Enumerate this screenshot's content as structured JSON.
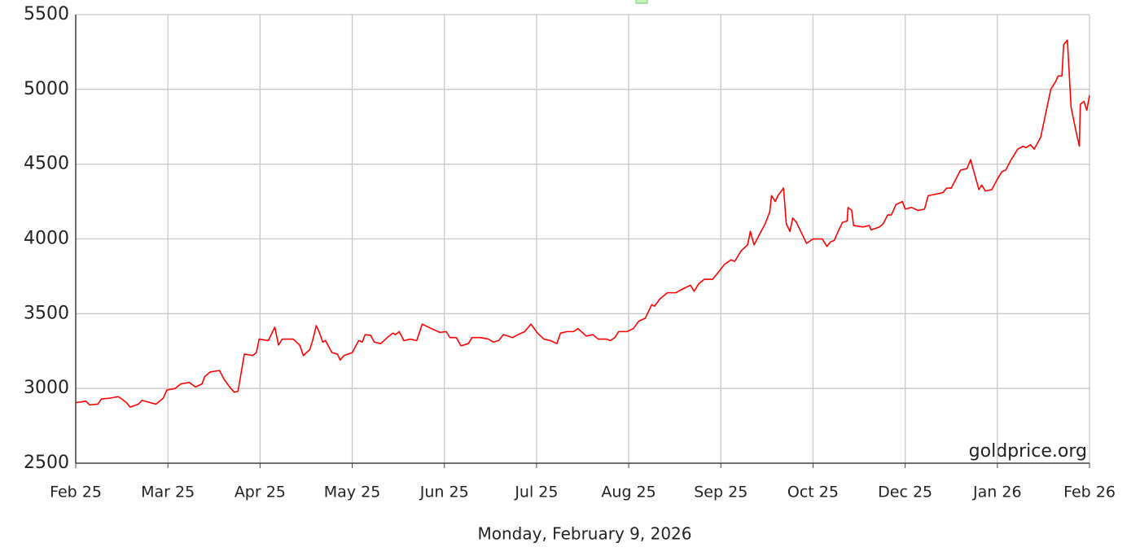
{
  "chart_data": {
    "type": "line",
    "footer": "Monday, February 9, 2026",
    "source": "goldprice.org",
    "xlim": [
      0,
      11
    ],
    "xticks": [
      {
        "value": 0,
        "label": "Feb 25"
      },
      {
        "value": 1,
        "label": "Mar 25"
      },
      {
        "value": 2,
        "label": "Apr 25"
      },
      {
        "value": 3,
        "label": "May 25"
      },
      {
        "value": 4,
        "label": "Jun 25"
      },
      {
        "value": 5,
        "label": "Jul 25"
      },
      {
        "value": 6,
        "label": "Aug 25"
      },
      {
        "value": 7,
        "label": "Sep 25"
      },
      {
        "value": 8,
        "label": "Oct 25"
      },
      {
        "value": 9,
        "label": "Dec 25"
      },
      {
        "value": 10,
        "label": "Jan 26"
      },
      {
        "value": 11,
        "label": "Feb 26"
      }
    ],
    "ylim": [
      2500,
      5500
    ],
    "yticks": [
      2500,
      3000,
      3500,
      4000,
      4500,
      5000,
      5500
    ],
    "grid": true,
    "series": [
      {
        "color": "#ff0000",
        "x": [
          0,
          0.06,
          0.11,
          0.15,
          0.24,
          0.28,
          0.37,
          0.46,
          0.5,
          0.55,
          0.59,
          0.68,
          0.72,
          0.81,
          0.87,
          0.95,
          0.99,
          1.08,
          1.14,
          1.23,
          1.3,
          1.37,
          1.4,
          1.46,
          1.56,
          1.61,
          1.67,
          1.72,
          1.76,
          1.83,
          1.92,
          1.96,
          1.99,
          2.09,
          2.16,
          2.2,
          2.24,
          2.36,
          2.43,
          2.47,
          2.54,
          2.57,
          2.61,
          2.64,
          2.68,
          2.71,
          2.78,
          2.84,
          2.87,
          2.91,
          3.0,
          3.07,
          3.11,
          3.14,
          3.2,
          3.24,
          3.31,
          3.38,
          3.44,
          3.47,
          3.51,
          3.56,
          3.63,
          3.7,
          3.76,
          3.86,
          3.95,
          4.02,
          4.06,
          4.13,
          4.18,
          4.26,
          4.3,
          4.39,
          4.48,
          4.53,
          4.59,
          4.64,
          4.69,
          4.74,
          4.8,
          4.87,
          4.94,
          5.01,
          5.08,
          5.15,
          5.22,
          5.26,
          5.33,
          5.4,
          5.45,
          5.54,
          5.61,
          5.67,
          5.76,
          5.8,
          5.85,
          5.89,
          5.98,
          6.05,
          6.11,
          6.18,
          6.25,
          6.28,
          6.34,
          6.42,
          6.51,
          6.6,
          6.67,
          6.71,
          6.76,
          6.82,
          6.91,
          6.95,
          7.04,
          7.11,
          7.15,
          7.22,
          7.29,
          7.32,
          7.36,
          7.41,
          7.48,
          7.53,
          7.55,
          7.59,
          7.62,
          7.68,
          7.71,
          7.75,
          7.78,
          7.82,
          7.93,
          8.0,
          8.1,
          8.15,
          8.19,
          8.23,
          8.28,
          8.32,
          8.37,
          8.38,
          8.42,
          8.44,
          8.54,
          8.61,
          8.63,
          8.72,
          8.76,
          8.81,
          8.85,
          8.9,
          8.97,
          9.0,
          9.07,
          9.14,
          9.21,
          9.25,
          9.34,
          9.41,
          9.45,
          9.5,
          9.6,
          9.67,
          9.71,
          9.75,
          9.8,
          9.83,
          9.87,
          9.94,
          10.0,
          10.05,
          10.09,
          10.15,
          10.22,
          10.28,
          10.31,
          10.36,
          10.4,
          10.47,
          10.58,
          10.63,
          10.66,
          10.7,
          10.72,
          10.76,
          10.8,
          10.86,
          10.89,
          10.9,
          10.94,
          10.97,
          11
        ],
        "values": [
          2905,
          2910,
          2915,
          2890,
          2895,
          2930,
          2935,
          2945,
          2930,
          2905,
          2875,
          2895,
          2920,
          2905,
          2895,
          2935,
          2990,
          3000,
          3030,
          3040,
          3010,
          3030,
          3080,
          3110,
          3120,
          3060,
          3010,
          2975,
          2980,
          3230,
          3220,
          3240,
          3330,
          3320,
          3410,
          3290,
          3330,
          3330,
          3290,
          3220,
          3260,
          3320,
          3420,
          3380,
          3310,
          3320,
          3240,
          3230,
          3190,
          3220,
          3240,
          3320,
          3310,
          3360,
          3355,
          3310,
          3300,
          3340,
          3370,
          3360,
          3380,
          3320,
          3330,
          3320,
          3430,
          3400,
          3375,
          3380,
          3340,
          3340,
          3285,
          3300,
          3340,
          3340,
          3330,
          3310,
          3320,
          3360,
          3350,
          3340,
          3360,
          3380,
          3430,
          3370,
          3330,
          3320,
          3300,
          3370,
          3380,
          3380,
          3400,
          3350,
          3360,
          3330,
          3330,
          3320,
          3340,
          3380,
          3380,
          3400,
          3450,
          3470,
          3560,
          3550,
          3600,
          3640,
          3640,
          3670,
          3690,
          3650,
          3700,
          3730,
          3730,
          3760,
          3830,
          3860,
          3850,
          3920,
          3960,
          4050,
          3960,
          4020,
          4100,
          4180,
          4290,
          4250,
          4290,
          4340,
          4100,
          4050,
          4140,
          4110,
          3970,
          4000,
          4000,
          3950,
          3980,
          3990,
          4060,
          4110,
          4120,
          4210,
          4190,
          4090,
          4080,
          4090,
          4060,
          4080,
          4100,
          4160,
          4160,
          4230,
          4250,
          4200,
          4210,
          4190,
          4200,
          4290,
          4300,
          4310,
          4340,
          4340,
          4460,
          4470,
          4530,
          4440,
          4330,
          4360,
          4320,
          4330,
          4400,
          4450,
          4460,
          4530,
          4600,
          4620,
          4610,
          4630,
          4600,
          4680,
          5000,
          5050,
          5090,
          5090,
          5300,
          5330,
          4880,
          4700,
          4620,
          4900,
          4920,
          4860,
          4960
        ]
      }
    ]
  }
}
